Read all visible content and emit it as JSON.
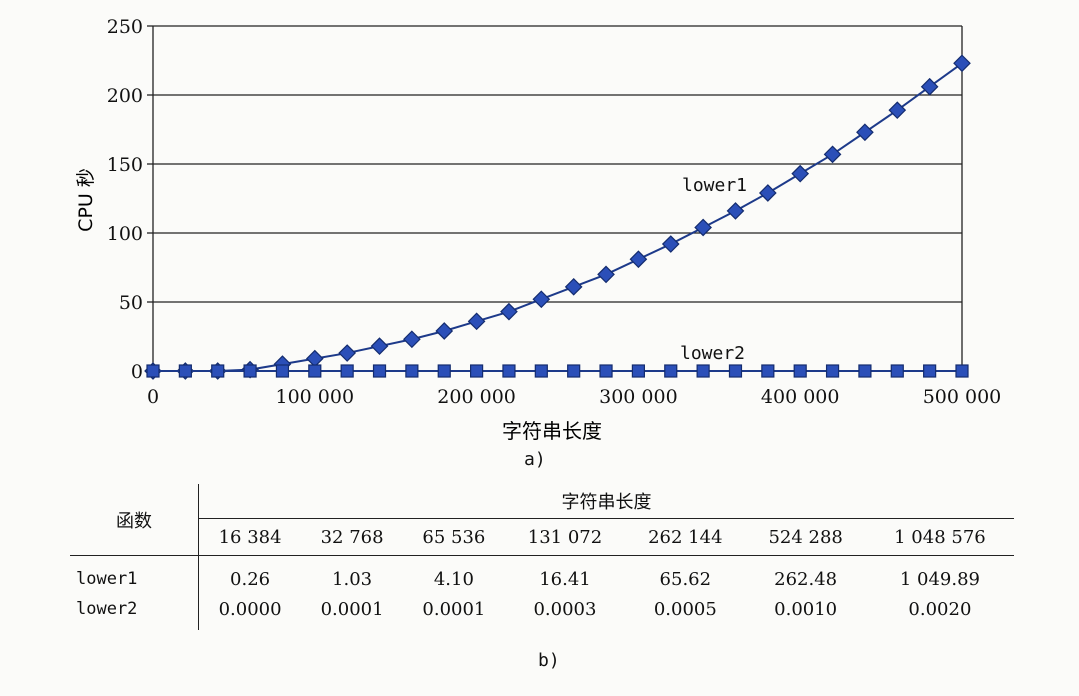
{
  "chart_data": {
    "type": "line",
    "caption": "a)",
    "ylabel": "CPU 秒",
    "xlabel": "字符串长度",
    "xlim": [
      0,
      500000
    ],
    "ylim": [
      0,
      250
    ],
    "xticks": [
      "0",
      "100 000",
      "200 000",
      "300 000",
      "400 000",
      "500 000"
    ],
    "yticks": [
      "0",
      "50",
      "100",
      "150",
      "200",
      "250"
    ],
    "grid": "horizontal",
    "series": [
      {
        "name": "lower1",
        "marker": "diamond",
        "color": "#2b4fb8",
        "x": [
          0,
          20000,
          40000,
          60000,
          80000,
          100000,
          120000,
          140000,
          160000,
          180000,
          200000,
          220000,
          240000,
          260000,
          280000,
          300000,
          320000,
          340000,
          360000,
          380000,
          400000,
          420000,
          440000,
          460000,
          480000,
          500000
        ],
        "y": [
          0,
          0,
          0,
          1,
          5,
          9,
          13,
          18,
          23,
          29,
          36,
          43,
          52,
          61,
          70,
          81,
          92,
          104,
          116,
          129,
          143,
          157,
          173,
          189,
          206,
          223
        ]
      },
      {
        "name": "lower2",
        "marker": "square",
        "color": "#2b4fb8",
        "x": [
          0,
          20000,
          40000,
          60000,
          80000,
          100000,
          120000,
          140000,
          160000,
          180000,
          200000,
          220000,
          240000,
          260000,
          280000,
          300000,
          320000,
          340000,
          360000,
          380000,
          400000,
          420000,
          440000,
          460000,
          480000,
          500000
        ],
        "y": [
          0,
          0,
          0,
          0,
          0,
          0,
          0,
          0,
          0,
          0,
          0,
          0,
          0,
          0,
          0,
          0,
          0,
          0,
          0,
          0,
          0,
          0,
          0,
          0,
          0,
          0
        ]
      }
    ]
  },
  "table": {
    "caption": "b)",
    "func_header": "函数",
    "group_header": "字符串长度",
    "columns": [
      "16 384",
      "32 768",
      "65 536",
      "131 072",
      "262 144",
      "524 288",
      "1 048 576"
    ],
    "rows": [
      {
        "name": "lower1",
        "values": [
          "0.26",
          "1.03",
          "4.10",
          "16.41",
          "65.62",
          "262.48",
          "1 049.89"
        ]
      },
      {
        "name": "lower2",
        "values": [
          "0.0000",
          "0.0001",
          "0.0001",
          "0.0003",
          "0.0005",
          "0.0010",
          "0.0020"
        ]
      }
    ]
  }
}
